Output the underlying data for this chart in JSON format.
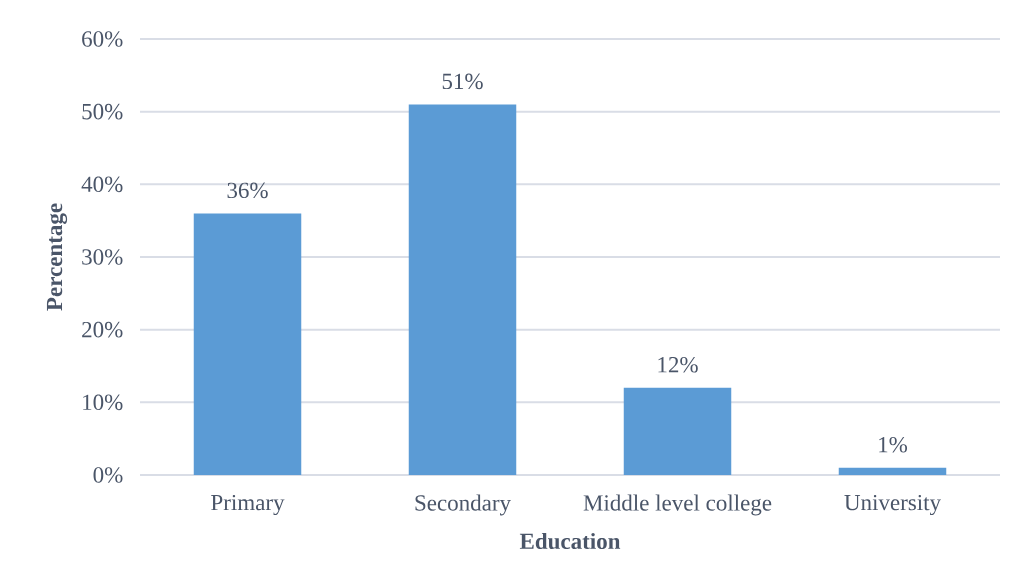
{
  "chart_data": {
    "type": "bar",
    "xlabel": "Education",
    "ylabel": "Percentage",
    "categories": [
      "Primary",
      "Secondary",
      "Middle level college",
      "University"
    ],
    "values": [
      36,
      51,
      12,
      1
    ],
    "value_labels": [
      "36%",
      "51%",
      "12%",
      "1%"
    ],
    "color": "#5b9bd5",
    "ylim": [
      0,
      60
    ],
    "yticks": [
      {
        "value": 0,
        "label": "0%"
      },
      {
        "value": 10,
        "label": "10%"
      },
      {
        "value": 20,
        "label": "20%"
      },
      {
        "value": 30,
        "label": "30%"
      },
      {
        "value": 40,
        "label": "40%"
      },
      {
        "value": 50,
        "label": "50%"
      },
      {
        "value": 60,
        "label": "60%"
      }
    ],
    "grid": "y"
  }
}
